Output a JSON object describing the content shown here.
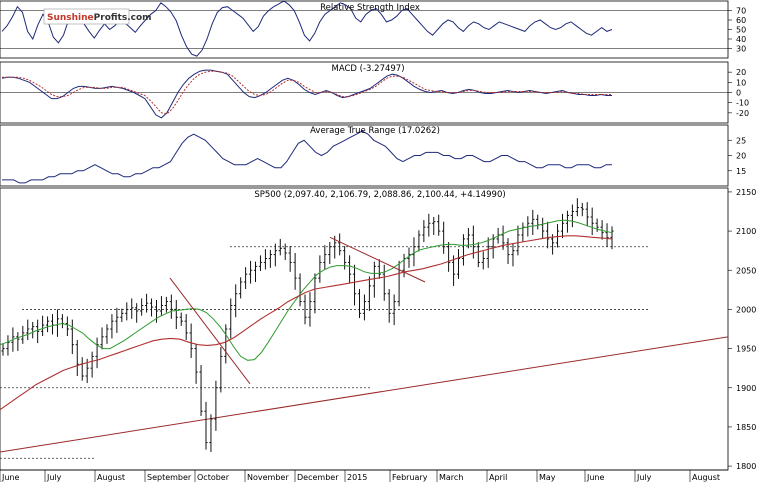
{
  "logo": {
    "part1": "Sunshine",
    "part2": "Profits",
    "part3": ".com"
  },
  "chart_data": [
    {
      "type": "line",
      "title": "Relative Strength Index",
      "ylim": [
        20,
        80
      ],
      "y_ticks": [
        30,
        40,
        50,
        60,
        70
      ],
      "reference_lines": [
        30,
        70
      ],
      "series": [
        {
          "values": [
            48,
            54,
            63,
            74,
            68,
            48,
            40,
            55,
            66,
            58,
            42,
            36,
            44,
            60,
            70,
            63,
            56,
            48,
            41,
            49,
            56,
            50,
            54,
            60,
            57,
            52,
            47,
            54,
            60,
            66,
            70,
            78,
            74,
            68,
            59,
            44,
            32,
            24,
            22,
            28,
            40,
            56,
            68,
            73,
            74,
            70,
            66,
            62,
            55,
            48,
            53,
            64,
            70,
            74,
            77,
            80,
            76,
            70,
            58,
            44,
            38,
            46,
            58,
            66,
            70,
            74,
            78,
            76,
            72,
            62,
            58,
            66,
            70,
            72,
            66,
            58,
            60,
            64,
            70,
            72,
            66,
            60,
            54,
            48,
            44,
            50,
            56,
            60,
            58,
            52,
            48,
            54,
            58,
            56,
            52,
            50,
            54,
            58,
            56,
            54,
            52,
            50,
            48,
            54,
            58,
            60,
            56,
            52,
            50,
            52,
            56,
            58,
            54,
            50,
            46,
            44,
            48,
            52,
            48,
            50
          ]
        }
      ]
    },
    {
      "type": "line",
      "title": "MACD (-3.27497)",
      "ylim": [
        -30,
        30
      ],
      "y_ticks": [
        -20,
        -10,
        0,
        10,
        20
      ],
      "series": [
        {
          "values": [
            14,
            15,
            15,
            14,
            12,
            10,
            6,
            2,
            -2,
            -6,
            -6,
            -4,
            0,
            4,
            6,
            6,
            5,
            4,
            4,
            5,
            6,
            5,
            4,
            2,
            0,
            -3,
            -6,
            -14,
            -22,
            -25,
            -20,
            -10,
            0,
            8,
            14,
            18,
            21,
            22,
            22,
            21,
            20,
            18,
            12,
            6,
            0,
            -4,
            -5,
            -3,
            0,
            4,
            8,
            12,
            14,
            12,
            8,
            3,
            0,
            -2,
            0,
            2,
            0,
            -3,
            -5,
            -4,
            -2,
            0,
            2,
            4,
            8,
            12,
            16,
            18,
            17,
            14,
            10,
            6,
            3,
            1,
            0,
            1,
            2,
            0,
            -1,
            0,
            2,
            3,
            2,
            0,
            -1,
            -1,
            0,
            1,
            2,
            1,
            0,
            1,
            2,
            1,
            0,
            -1,
            0,
            1,
            2,
            0,
            -1,
            -2,
            -2,
            -3,
            -3,
            -2,
            -3,
            -3
          ]
        },
        {
          "values": [
            15,
            15,
            15,
            15,
            14,
            12,
            9,
            6,
            2,
            -2,
            -4,
            -4,
            -3,
            0,
            3,
            5,
            5,
            5,
            4,
            4,
            5,
            5,
            5,
            3,
            1,
            -1,
            -3,
            -8,
            -14,
            -20,
            -21,
            -16,
            -8,
            1,
            8,
            14,
            18,
            20,
            21,
            21,
            20,
            19,
            16,
            11,
            6,
            1,
            -2,
            -3,
            -2,
            1,
            5,
            9,
            12,
            12,
            10,
            6,
            3,
            0,
            0,
            1,
            0,
            -2,
            -4,
            -4,
            -3,
            -1,
            1,
            3,
            6,
            10,
            14,
            16,
            16,
            15,
            12,
            9,
            6,
            3,
            2,
            1,
            1,
            0,
            0,
            0,
            1,
            2,
            2,
            1,
            0,
            0,
            0,
            0,
            1,
            1,
            1,
            1,
            1,
            1,
            0,
            0,
            0,
            0,
            1,
            0,
            -1,
            -1,
            -2,
            -2,
            -2,
            -2,
            -2,
            -2
          ]
        }
      ]
    },
    {
      "type": "line",
      "title": "Average True Range (17.0262)",
      "ylim": [
        10,
        30
      ],
      "y_ticks": [
        15,
        20,
        25
      ],
      "series": [
        {
          "values": [
            12,
            12,
            12,
            11,
            11,
            12,
            12,
            12,
            13,
            13,
            14,
            14,
            14,
            15,
            15,
            16,
            17,
            16,
            15,
            14,
            14,
            13,
            13,
            14,
            14,
            15,
            16,
            16,
            17,
            18,
            21,
            24,
            26,
            27,
            26,
            25,
            23,
            21,
            19,
            18,
            17,
            17,
            17,
            18,
            19,
            18,
            17,
            16,
            16,
            18,
            21,
            24,
            25,
            23,
            21,
            20,
            21,
            23,
            24,
            25,
            26,
            27,
            28,
            27,
            25,
            24,
            23,
            21,
            19,
            18,
            19,
            20,
            20,
            21,
            21,
            21,
            20,
            20,
            19,
            19,
            20,
            20,
            19,
            18,
            18,
            19,
            20,
            20,
            19,
            18,
            18,
            17,
            16,
            16,
            17,
            17,
            17,
            16,
            16,
            17,
            17,
            17,
            16,
            16,
            17,
            17
          ]
        }
      ]
    },
    {
      "type": "candlestick",
      "title": "SP500 (2,097.40, 2,106.79, 2,088.86, 2,100.44, +4.14990)",
      "ylim": [
        1795,
        2155
      ],
      "y_ticks": [
        1800,
        1850,
        1900,
        1950,
        2000,
        2050,
        2100,
        2150
      ],
      "x_months": [
        "June",
        "July",
        "August",
        "September",
        "October",
        "November",
        "December",
        "2015",
        "February",
        "March",
        "April",
        "May",
        "June",
        "July",
        "August"
      ],
      "price": [
        1950,
        1958,
        1965,
        1962,
        1970,
        1975,
        1978,
        1972,
        1980,
        1985,
        1980,
        1988,
        1982,
        1975,
        1955,
        1930,
        1915,
        1925,
        1940,
        1955,
        1965,
        1975,
        1985,
        1990,
        1995,
        2000,
        2002,
        1998,
        2005,
        2008,
        2003,
        1998,
        2005,
        2010,
        2000,
        1990,
        1985,
        1970,
        1950,
        1920,
        1870,
        1830,
        1860,
        1900,
        1940,
        1975,
        2005,
        2020,
        2035,
        2045,
        2050,
        2055,
        2060,
        2065,
        2070,
        2075,
        2078,
        2072,
        2060,
        2040,
        2010,
        1990,
        2010,
        2040,
        2060,
        2070,
        2080,
        2085,
        2075,
        2060,
        2045,
        2020,
        1995,
        2010,
        2030,
        2055,
        2045,
        2020,
        1995,
        2010,
        2050,
        2065,
        2070,
        2080,
        2095,
        2105,
        2110,
        2112,
        2100,
        2080,
        2060,
        2045,
        2065,
        2090,
        2095,
        2080,
        2060,
        2065,
        2080,
        2090,
        2095,
        2085,
        2070,
        2075,
        2095,
        2105,
        2110,
        2115,
        2108,
        2100,
        2090,
        2085,
        2100,
        2110,
        2120,
        2125,
        2130,
        2128,
        2118,
        2110,
        2105,
        2098,
        2092,
        2100
      ],
      "sma_green": [
        1955,
        1958,
        1962,
        1965,
        1968,
        1972,
        1975,
        1978,
        1980,
        1982,
        1980,
        1975,
        1970,
        1962,
        1955,
        1950,
        1950,
        1955,
        1960,
        1966,
        1972,
        1978,
        1984,
        1990,
        1994,
        1998,
        1999,
        2000,
        2001,
        2000,
        1996,
        1988,
        1978,
        1966,
        1952,
        1940,
        1935,
        1936,
        1945,
        1958,
        1972,
        1986,
        2000,
        2012,
        2024,
        2034,
        2044,
        2050,
        2054,
        2056,
        2056,
        2055,
        2052,
        2048,
        2046,
        2046,
        2048,
        2052,
        2058,
        2065,
        2071,
        2076,
        2078,
        2080,
        2082,
        2083,
        2083,
        2082,
        2082,
        2083,
        2085,
        2088,
        2092,
        2096,
        2100,
        2102,
        2104,
        2106,
        2107,
        2109,
        2111,
        2113,
        2114,
        2113,
        2111,
        2108,
        2105,
        2102,
        2100,
        2098
      ],
      "sma_red": [
        1872,
        1880,
        1888,
        1896,
        1904,
        1910,
        1916,
        1922,
        1926,
        1930,
        1933,
        1936,
        1940,
        1944,
        1948,
        1952,
        1956,
        1960,
        1962,
        1963,
        1962,
        1958,
        1955,
        1954,
        1955,
        1958,
        1964,
        1972,
        1980,
        1988,
        1995,
        2002,
        2010,
        2016,
        2022,
        2026,
        2028,
        2030,
        2032,
        2034,
        2036,
        2038,
        2040,
        2042,
        2045,
        2048,
        2050,
        2052,
        2055,
        2058,
        2062,
        2066,
        2070,
        2073,
        2076,
        2079,
        2082,
        2084,
        2086,
        2088,
        2090,
        2092,
        2093,
        2094,
        2094,
        2093,
        2092,
        2091,
        2090
      ],
      "support_lines": [
        2080,
        2000,
        1900,
        1810
      ],
      "trend_line": [
        1818,
        1965
      ]
    }
  ]
}
